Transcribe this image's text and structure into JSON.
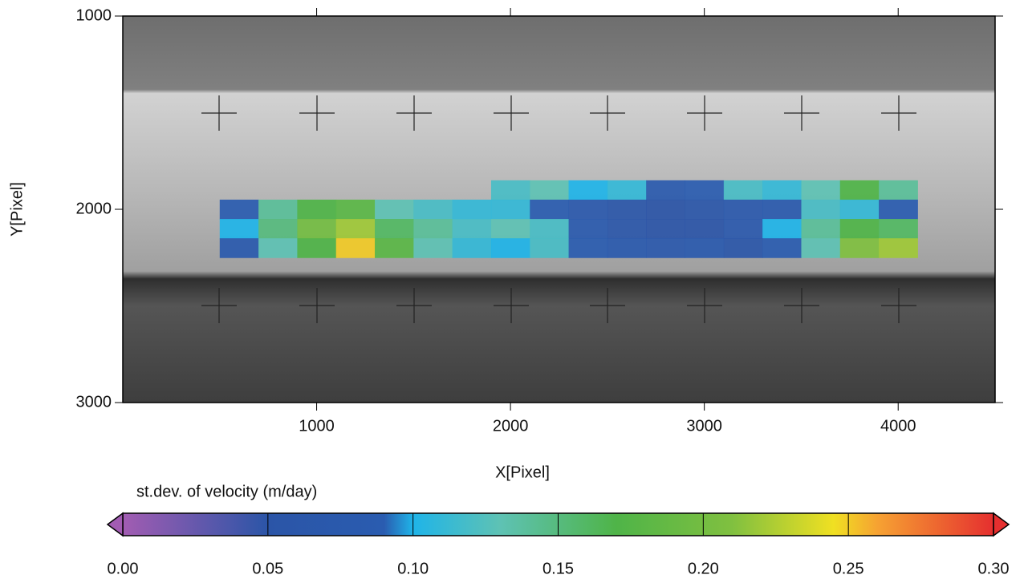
{
  "chart_data": {
    "type": "heatmap",
    "xlabel": "X[Pixel]",
    "ylabel": "Y[Pixel]",
    "xlim": [
      0,
      4500
    ],
    "ylim": [
      3000,
      1000
    ],
    "xticks": [
      1000,
      2000,
      3000,
      4000
    ],
    "yticks": [
      1000,
      2000,
      3000
    ],
    "x": [
      600,
      800,
      1000,
      1200,
      1400,
      1600,
      1800,
      2000,
      2200,
      2400,
      2600,
      2800,
      3000,
      3200,
      3400,
      3600,
      3800,
      4000
    ],
    "y": [
      1900,
      2000,
      2100,
      2200
    ],
    "z": [
      [
        null,
        null,
        null,
        null,
        null,
        null,
        null,
        0.12,
        0.13,
        0.1,
        0.11,
        0.08,
        0.09,
        0.12,
        0.11,
        0.13,
        0.17,
        0.14
      ],
      [
        0.09,
        0.14,
        0.17,
        0.18,
        0.13,
        0.12,
        0.11,
        0.11,
        0.09,
        0.07,
        0.06,
        0.05,
        0.06,
        0.07,
        0.08,
        0.12,
        0.11,
        0.09
      ],
      [
        0.1,
        0.15,
        0.2,
        0.22,
        0.16,
        0.14,
        0.12,
        0.13,
        0.12,
        0.08,
        0.06,
        0.05,
        0.05,
        0.07,
        0.1,
        0.14,
        0.17,
        0.16
      ],
      [
        0.08,
        0.13,
        0.17,
        0.25,
        0.18,
        0.13,
        0.11,
        0.1,
        0.12,
        0.09,
        0.08,
        0.07,
        0.08,
        0.06,
        0.09,
        0.13,
        0.21,
        0.22
      ]
    ],
    "colorbar": {
      "label": "st.dev. of velocity (m/day)",
      "lim": [
        0,
        0.3
      ],
      "ticks": [
        {
          "value": 0,
          "label": "0.00"
        },
        {
          "value": 0.05,
          "label": "0.05"
        },
        {
          "value": 0.1,
          "label": "0.10"
        },
        {
          "value": 0.15,
          "label": "0.15"
        },
        {
          "value": 0.2,
          "label": "0.20"
        },
        {
          "value": 0.25,
          "label": "0.25"
        },
        {
          "value": 0.3,
          "label": "0.30"
        }
      ],
      "colormap": [
        {
          "value": 0,
          "color": "#a25cb2"
        },
        {
          "value": 0.05,
          "color": "#2b55a7"
        },
        {
          "value": 0.09,
          "color": "#2a5cb0"
        },
        {
          "value": 0.1,
          "color": "#1fb4e8"
        },
        {
          "value": 0.13,
          "color": "#5ec2b4"
        },
        {
          "value": 0.17,
          "color": "#4fb448"
        },
        {
          "value": 0.21,
          "color": "#80c040"
        },
        {
          "value": 0.245,
          "color": "#f0e022"
        },
        {
          "value": 0.26,
          "color": "#f6a232"
        },
        {
          "value": 0.3,
          "color": "#e52f2f"
        }
      ]
    }
  }
}
